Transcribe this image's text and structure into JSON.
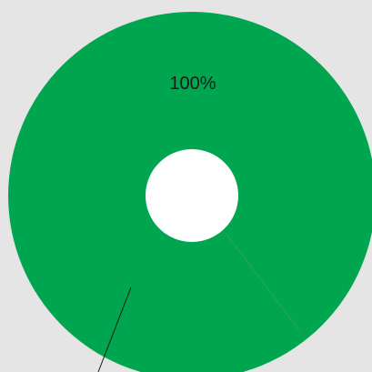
{
  "chart_data": {
    "type": "pie",
    "style": "donut",
    "slices": [
      {
        "value": 100,
        "label": "100%",
        "color": "#00a64f"
      }
    ],
    "colors": {
      "background": "#e5e5e5",
      "hole": "#ffffff",
      "leader_line": "#1a1a1a"
    }
  }
}
